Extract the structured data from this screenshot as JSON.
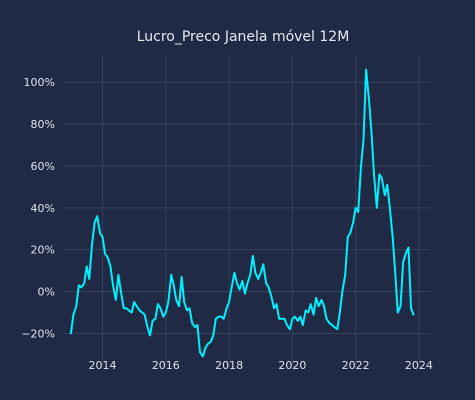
{
  "chart_data": {
    "type": "line",
    "title": "Lucro_Preco Janela móvel 12M",
    "xlabel": "",
    "ylabel": "",
    "xlim": [
      2012.75,
      2024.35
    ],
    "ylim": [
      -37,
      113
    ],
    "grid": true,
    "legend": "none",
    "x_ticks": [
      2014,
      2016,
      2018,
      2020,
      2022,
      2024
    ],
    "y_ticks": [
      -20,
      0,
      20,
      40,
      60,
      80,
      100
    ],
    "y_tick_labels": [
      "−20%",
      "0%",
      "20%",
      "40%",
      "60%",
      "80%",
      "100%"
    ],
    "x_tick_labels": [
      "2014",
      "2016",
      "2018",
      "2020",
      "2022",
      "2024"
    ],
    "series": [
      {
        "color": "#00f0ff",
        "points": [
          [
            2013.0,
            -20
          ],
          [
            2013.08,
            -11
          ],
          [
            2013.17,
            -7
          ],
          [
            2013.25,
            3
          ],
          [
            2013.33,
            2
          ],
          [
            2013.42,
            4
          ],
          [
            2013.5,
            12
          ],
          [
            2013.58,
            6
          ],
          [
            2013.67,
            23
          ],
          [
            2013.75,
            33
          ],
          [
            2013.83,
            36
          ],
          [
            2013.92,
            28
          ],
          [
            2014.0,
            26
          ],
          [
            2014.08,
            18
          ],
          [
            2014.17,
            16
          ],
          [
            2014.25,
            12
          ],
          [
            2014.33,
            3
          ],
          [
            2014.42,
            -4
          ],
          [
            2014.5,
            8
          ],
          [
            2014.58,
            0
          ],
          [
            2014.67,
            -8
          ],
          [
            2014.75,
            -8
          ],
          [
            2014.83,
            -9
          ],
          [
            2014.92,
            -10
          ],
          [
            2015.0,
            -5
          ],
          [
            2015.08,
            -7
          ],
          [
            2015.17,
            -9
          ],
          [
            2015.25,
            -10
          ],
          [
            2015.33,
            -11
          ],
          [
            2015.42,
            -17
          ],
          [
            2015.5,
            -21
          ],
          [
            2015.58,
            -14
          ],
          [
            2015.67,
            -13
          ],
          [
            2015.75,
            -6
          ],
          [
            2015.83,
            -8
          ],
          [
            2015.92,
            -12
          ],
          [
            2016.0,
            -10
          ],
          [
            2016.08,
            -5
          ],
          [
            2016.17,
            8
          ],
          [
            2016.25,
            3
          ],
          [
            2016.33,
            -4
          ],
          [
            2016.42,
            -7
          ],
          [
            2016.5,
            7
          ],
          [
            2016.58,
            -5
          ],
          [
            2016.67,
            -9
          ],
          [
            2016.75,
            -8
          ],
          [
            2016.83,
            -15
          ],
          [
            2016.92,
            -17
          ],
          [
            2017.0,
            -16
          ],
          [
            2017.08,
            -29
          ],
          [
            2017.17,
            -31
          ],
          [
            2017.25,
            -27
          ],
          [
            2017.33,
            -25
          ],
          [
            2017.42,
            -24
          ],
          [
            2017.5,
            -21
          ],
          [
            2017.58,
            -13
          ],
          [
            2017.67,
            -12
          ],
          [
            2017.75,
            -12
          ],
          [
            2017.83,
            -13
          ],
          [
            2017.92,
            -8
          ],
          [
            2018.0,
            -5
          ],
          [
            2018.08,
            2
          ],
          [
            2018.17,
            9
          ],
          [
            2018.25,
            4
          ],
          [
            2018.33,
            1
          ],
          [
            2018.42,
            5
          ],
          [
            2018.5,
            -1
          ],
          [
            2018.58,
            4
          ],
          [
            2018.67,
            8
          ],
          [
            2018.75,
            17
          ],
          [
            2018.83,
            9
          ],
          [
            2018.92,
            6
          ],
          [
            2019.0,
            9
          ],
          [
            2019.08,
            13
          ],
          [
            2019.17,
            4
          ],
          [
            2019.25,
            2
          ],
          [
            2019.33,
            -2
          ],
          [
            2019.42,
            -8
          ],
          [
            2019.5,
            -6
          ],
          [
            2019.58,
            -13
          ],
          [
            2019.67,
            -13
          ],
          [
            2019.75,
            -13
          ],
          [
            2019.83,
            -16
          ],
          [
            2019.92,
            -18
          ],
          [
            2020.0,
            -13
          ],
          [
            2020.08,
            -12
          ],
          [
            2020.17,
            -14
          ],
          [
            2020.25,
            -12
          ],
          [
            2020.33,
            -16
          ],
          [
            2020.42,
            -9
          ],
          [
            2020.5,
            -10
          ],
          [
            2020.58,
            -6
          ],
          [
            2020.67,
            -11
          ],
          [
            2020.75,
            -3
          ],
          [
            2020.83,
            -7
          ],
          [
            2020.92,
            -4
          ],
          [
            2021.0,
            -7
          ],
          [
            2021.08,
            -13
          ],
          [
            2021.17,
            -15
          ],
          [
            2021.25,
            -16
          ],
          [
            2021.33,
            -17
          ],
          [
            2021.42,
            -18
          ],
          [
            2021.5,
            -10
          ],
          [
            2021.58,
            0
          ],
          [
            2021.67,
            8
          ],
          [
            2021.75,
            26
          ],
          [
            2021.83,
            28
          ],
          [
            2021.92,
            33
          ],
          [
            2022.0,
            40
          ],
          [
            2022.08,
            38
          ],
          [
            2022.17,
            60
          ],
          [
            2022.25,
            73
          ],
          [
            2022.33,
            106
          ],
          [
            2022.42,
            92
          ],
          [
            2022.5,
            76
          ],
          [
            2022.58,
            56
          ],
          [
            2022.67,
            40
          ],
          [
            2022.75,
            56
          ],
          [
            2022.83,
            54
          ],
          [
            2022.92,
            46
          ],
          [
            2023.0,
            51
          ],
          [
            2023.08,
            40
          ],
          [
            2023.17,
            26
          ],
          [
            2023.25,
            9
          ],
          [
            2023.33,
            -10
          ],
          [
            2023.42,
            -7
          ],
          [
            2023.5,
            14
          ],
          [
            2023.58,
            18
          ],
          [
            2023.67,
            21
          ],
          [
            2023.75,
            -8
          ],
          [
            2023.83,
            -11
          ]
        ]
      }
    ]
  }
}
